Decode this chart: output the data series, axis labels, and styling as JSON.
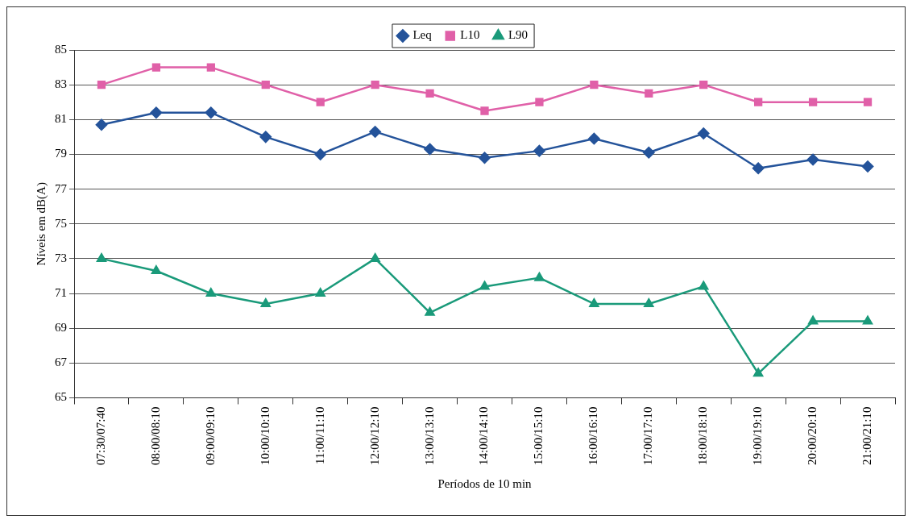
{
  "chart_data": {
    "type": "line",
    "xlabel": "Períodos de 10 min",
    "ylabel": "Níveis em dB(A)",
    "categories": [
      "07:30/07:40",
      "08:00/08:10",
      "09:00/09:10",
      "10:00/10:10",
      "11:00/11:10",
      "12:00/12:10",
      "13:00/13:10",
      "14:00/14:10",
      "15:00/15:10",
      "16:00/16:10",
      "17:00/17:10",
      "18:00/18:10",
      "19:00/19:10",
      "20:00/20:10",
      "21:00/21:10"
    ],
    "series": [
      {
        "name": "Leq",
        "color": "#24539a",
        "marker": "diamond",
        "values": [
          80.7,
          81.4,
          81.4,
          80.0,
          79.0,
          80.3,
          79.3,
          78.8,
          79.2,
          79.9,
          79.1,
          80.2,
          78.2,
          78.7,
          78.3
        ]
      },
      {
        "name": "L10",
        "color": "#e060a8",
        "marker": "square",
        "values": [
          83,
          84,
          84,
          83,
          82,
          83,
          82.5,
          81.5,
          82,
          83,
          82.5,
          83,
          82,
          82,
          82
        ]
      },
      {
        "name": "L90",
        "color": "#1a9a7a",
        "marker": "triangle",
        "values": [
          73,
          72.3,
          71,
          70.4,
          71,
          73,
          69.9,
          71.4,
          71.9,
          70.4,
          70.4,
          71.4,
          66.4,
          69.4,
          69.4
        ]
      }
    ],
    "ylim": [
      65,
      85
    ],
    "yticks": [
      65,
      67,
      69,
      71,
      73,
      75,
      77,
      79,
      81,
      83,
      85
    ],
    "grid": "y",
    "legend": "top"
  }
}
